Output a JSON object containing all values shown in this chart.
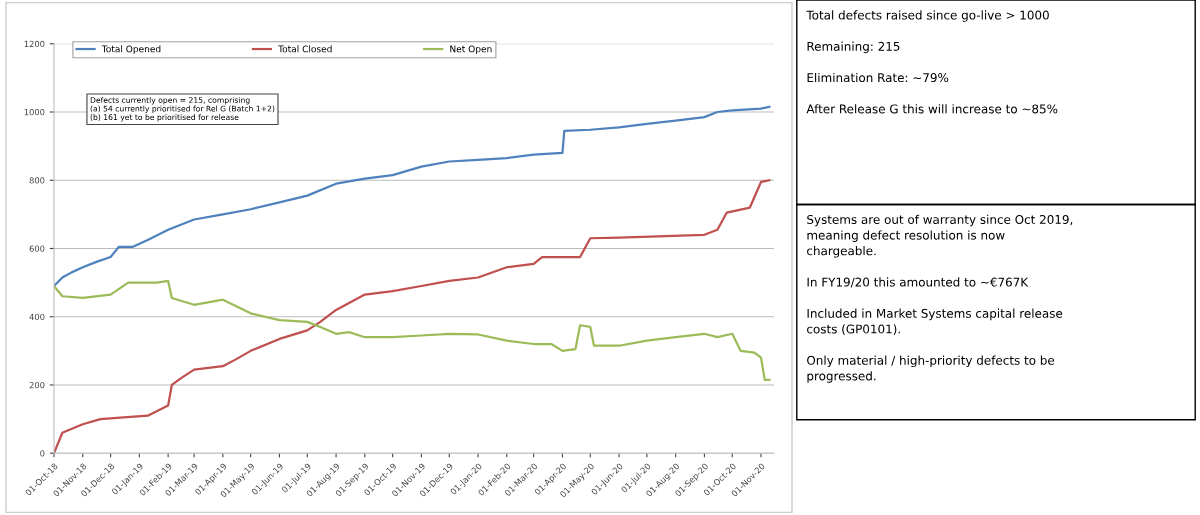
{
  "chart_data": {
    "type": "line",
    "xlim": [
      "2018-10-01",
      "2020-11-15"
    ],
    "ylim": [
      0,
      1200
    ],
    "yticks": [
      0,
      200,
      400,
      600,
      800,
      1000,
      1200
    ],
    "xticks": [
      {
        "value": "2018-10-01",
        "label": "01-Oct-18"
      },
      {
        "value": "2018-11-01",
        "label": "01-Nov-18"
      },
      {
        "value": "2018-12-01",
        "label": "01-Dec-18"
      },
      {
        "value": "2019-01-01",
        "label": "01-Jan-19"
      },
      {
        "value": "2019-02-01",
        "label": "01-Feb-19"
      },
      {
        "value": "2019-03-01",
        "label": "01-Mar-19"
      },
      {
        "value": "2019-04-01",
        "label": "01-Apr-19"
      },
      {
        "value": "2019-05-01",
        "label": "01-May-19"
      },
      {
        "value": "2019-06-01",
        "label": "01-Jun-19"
      },
      {
        "value": "2019-07-01",
        "label": "01-Jul-19"
      },
      {
        "value": "2019-08-01",
        "label": "01-Aug-19"
      },
      {
        "value": "2019-09-01",
        "label": "01-Sep-19"
      },
      {
        "value": "2019-10-01",
        "label": "01-Oct-19"
      },
      {
        "value": "2019-11-01",
        "label": "01-Nov-19"
      },
      {
        "value": "2019-12-01",
        "label": "01-Dec-19"
      },
      {
        "value": "2020-01-01",
        "label": "01-Jan-20"
      },
      {
        "value": "2020-02-01",
        "label": "01-Feb-20"
      },
      {
        "value": "2020-03-01",
        "label": "01-Mar-20"
      },
      {
        "value": "2020-04-01",
        "label": "01-Apr-20"
      },
      {
        "value": "2020-05-01",
        "label": "01-May-20"
      },
      {
        "value": "2020-06-01",
        "label": "01-Jun-20"
      },
      {
        "value": "2020-07-01",
        "label": "01-Jul-20"
      },
      {
        "value": "2020-08-01",
        "label": "01-Aug-20"
      },
      {
        "value": "2020-09-01",
        "label": "01-Sep-20"
      },
      {
        "value": "2020-10-01",
        "label": "01-Oct-20"
      },
      {
        "value": "2020-11-01",
        "label": "01-Nov-20"
      }
    ],
    "grid": "y",
    "legend": "top",
    "marker": "none",
    "line_style": "solid",
    "series": [
      {
        "name": "Total Opened",
        "color": "#4f81bd",
        "x": [
          "2018-10-01",
          "2018-10-10",
          "2018-10-20",
          "2018-11-01",
          "2018-11-15",
          "2018-12-01",
          "2018-12-10",
          "2018-12-25",
          "2019-01-10",
          "2019-02-01",
          "2019-03-01",
          "2019-04-01",
          "2019-05-01",
          "2019-06-01",
          "2019-07-01",
          "2019-08-01",
          "2019-09-01",
          "2019-10-01",
          "2019-11-01",
          "2019-12-01",
          "2020-01-01",
          "2020-02-01",
          "2020-03-01",
          "2020-04-01",
          "2020-04-03",
          "2020-05-01",
          "2020-06-01",
          "2020-07-01",
          "2020-08-01",
          "2020-09-01",
          "2020-09-15",
          "2020-10-01",
          "2020-11-01",
          "2020-11-10"
        ],
        "values": [
          490,
          515,
          530,
          545,
          560,
          575,
          605,
          605,
          625,
          655,
          685,
          700,
          715,
          735,
          755,
          790,
          805,
          815,
          840,
          855,
          860,
          865,
          875,
          880,
          945,
          948,
          955,
          965,
          975,
          985,
          1000,
          1005,
          1010,
          1015
        ]
      },
      {
        "name": "Total Closed",
        "color": "#c0504d",
        "x": [
          "2018-10-01",
          "2018-10-10",
          "2018-11-01",
          "2018-11-20",
          "2018-12-15",
          "2019-01-10",
          "2019-01-25",
          "2019-02-01",
          "2019-02-05",
          "2019-02-15",
          "2019-03-01",
          "2019-04-01",
          "2019-04-15",
          "2019-05-01",
          "2019-06-01",
          "2019-07-01",
          "2019-07-15",
          "2019-08-01",
          "2019-09-01",
          "2019-10-01",
          "2019-11-01",
          "2019-12-01",
          "2020-01-01",
          "2020-02-01",
          "2020-03-01",
          "2020-03-10",
          "2020-04-20",
          "2020-05-01",
          "2020-06-01",
          "2020-09-01",
          "2020-09-15",
          "2020-09-25",
          "2020-10-20",
          "2020-11-01",
          "2020-11-10"
        ],
        "values": [
          0,
          60,
          85,
          100,
          105,
          110,
          130,
          140,
          200,
          220,
          245,
          255,
          275,
          300,
          335,
          360,
          385,
          420,
          465,
          475,
          490,
          505,
          515,
          545,
          555,
          575,
          575,
          630,
          632,
          640,
          655,
          705,
          720,
          795,
          800
        ]
      },
      {
        "name": "Net Open",
        "color": "#9bbb59",
        "x": [
          "2018-10-01",
          "2018-10-10",
          "2018-11-01",
          "2018-12-01",
          "2018-12-20",
          "2019-01-20",
          "2019-02-01",
          "2019-02-05",
          "2019-03-01",
          "2019-04-01",
          "2019-05-01",
          "2019-06-01",
          "2019-07-01",
          "2019-07-15",
          "2019-08-01",
          "2019-08-15",
          "2019-09-01",
          "2019-10-01",
          "2019-11-01",
          "2019-12-01",
          "2020-01-01",
          "2020-02-01",
          "2020-03-01",
          "2020-03-20",
          "2020-04-01",
          "2020-04-15",
          "2020-04-20",
          "2020-05-01",
          "2020-05-05",
          "2020-06-01",
          "2020-07-01",
          "2020-08-01",
          "2020-09-01",
          "2020-09-15",
          "2020-10-01",
          "2020-10-10",
          "2020-10-25",
          "2020-11-01",
          "2020-11-05",
          "2020-11-10"
        ],
        "values": [
          490,
          460,
          455,
          465,
          500,
          500,
          505,
          455,
          435,
          450,
          410,
          390,
          385,
          370,
          350,
          355,
          340,
          340,
          345,
          350,
          348,
          330,
          320,
          320,
          300,
          305,
          375,
          370,
          315,
          315,
          330,
          340,
          350,
          340,
          350,
          300,
          295,
          280,
          215,
          215
        ]
      }
    ],
    "annotations": [
      "Defects currently open = 215, comprising\n(a) 54 currently prioritised for Rel G (Batch 1+2)\n(b) 161 yet to be prioritised for release",
      "Total defects raised since go-live > 1000\n\nRemaining: 215\n\nElimination Rate: ~79%\n\nAfter Release G this will increase to ~85%",
      "Systems are out of warranty since Oct 2019,\nmeaning defect resolution is now\nchargeable.\n\nIn FY19/20 this amounted to ~€767K\n\nIncluded in Market Systems capital release\ncosts (GP0101).\n\nOnly material / high-priority defects to be\nprogressed."
    ]
  }
}
